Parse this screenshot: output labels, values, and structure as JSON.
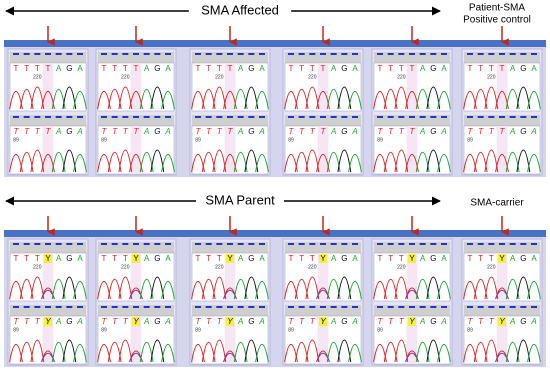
{
  "rows": [
    {
      "title": "SMA Affected",
      "control_label": [
        "Patient-SMA",
        "Positive control"
      ],
      "panels": [
        {
          "top": [
            "T",
            "T",
            "T",
            "T",
            "A",
            "G",
            "A"
          ],
          "top_num": "220",
          "bottom": [
            "T",
            "T",
            "T",
            "T",
            "A",
            "G",
            "A"
          ],
          "bottom_num": "89"
        },
        {
          "top": [
            "T",
            "T",
            "T",
            "T",
            "A",
            "G",
            "A"
          ],
          "top_num": "220",
          "bottom": [
            "T",
            "T",
            "T",
            "T",
            "A",
            "G",
            "A"
          ],
          "bottom_num": "89"
        },
        {
          "top": [
            "T",
            "T",
            "T",
            "T",
            "A",
            "G",
            "A"
          ],
          "top_num": "220",
          "bottom": [
            "T",
            "T",
            "T",
            "T",
            "A",
            "G",
            "A"
          ],
          "bottom_num": "89"
        },
        {
          "top": [
            "T",
            "T",
            "T",
            "T",
            "A",
            "G",
            "A"
          ],
          "top_num": "220",
          "bottom": [
            "T",
            "T",
            "T",
            "T",
            "A",
            "G",
            "A"
          ],
          "bottom_num": "89"
        },
        {
          "top": [
            "T",
            "T",
            "T",
            "T",
            "A",
            "G",
            "A"
          ],
          "top_num": "220",
          "bottom": [
            "T",
            "T",
            "T",
            "T",
            "A",
            "G",
            "A"
          ],
          "bottom_num": "89"
        },
        {
          "top": [
            "T",
            "T",
            "T",
            "T",
            "A",
            "G",
            "A"
          ],
          "top_num": "220",
          "bottom": [
            "T",
            "T",
            "T",
            "T",
            "A",
            "G",
            "A"
          ],
          "bottom_num": "89"
        }
      ]
    },
    {
      "title": "SMA Parent",
      "control_label": [
        "SMA-carrier"
      ],
      "panels": [
        {
          "top": [
            "T",
            "T",
            "T",
            "Y",
            "A",
            "G",
            "A"
          ],
          "top_num": "220",
          "bottom": [
            "T",
            "T",
            "T",
            "Y",
            "A",
            "G",
            "A"
          ],
          "bottom_num": "89"
        },
        {
          "top": [
            "T",
            "T",
            "T",
            "Y",
            "A",
            "G",
            "A"
          ],
          "top_num": "220",
          "bottom": [
            "T",
            "T",
            "T",
            "Y",
            "A",
            "G",
            "A"
          ],
          "bottom_num": "89"
        },
        {
          "top": [
            "T",
            "T",
            "T",
            "Y",
            "A",
            "G",
            "A"
          ],
          "top_num": "220",
          "bottom": [
            "T",
            "T",
            "T",
            "Y",
            "A",
            "G",
            "A"
          ],
          "bottom_num": "89"
        },
        {
          "top": [
            "T",
            "T",
            "T",
            "Y",
            "A",
            "G",
            "A"
          ],
          "top_num": "220",
          "bottom": [
            "T",
            "T",
            "T",
            "Y",
            "A",
            "G",
            "A"
          ],
          "bottom_num": "89"
        },
        {
          "top": [
            "T",
            "T",
            "T",
            "Y",
            "A",
            "G",
            "A"
          ],
          "top_num": "220",
          "bottom": [
            "T",
            "T",
            "T",
            "Y",
            "A",
            "G",
            "A"
          ],
          "bottom_num": "89"
        },
        {
          "top": [
            "T",
            "T",
            "T",
            "Y",
            "A",
            "G",
            "A"
          ],
          "top_num": "220",
          "bottom": [
            "T",
            "T",
            "T",
            "Y",
            "A",
            "G",
            "A"
          ],
          "bottom_num": "89"
        }
      ]
    }
  ]
}
